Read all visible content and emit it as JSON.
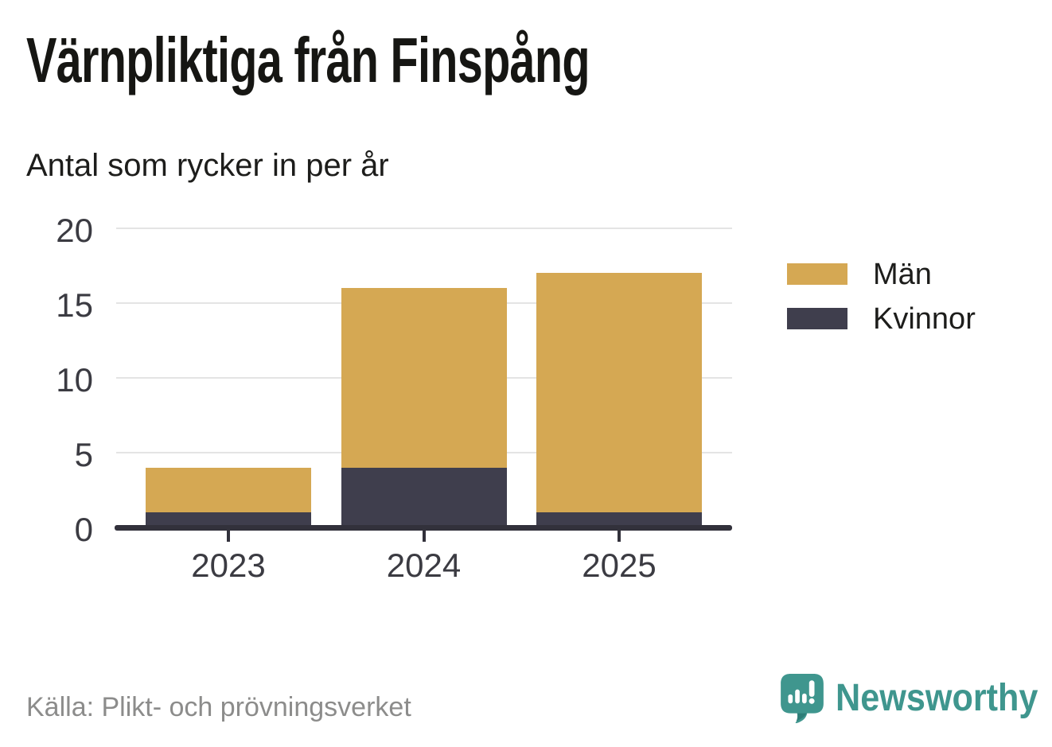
{
  "header": {
    "title": "Värnpliktiga från Finspång",
    "subtitle": "Antal som rycker in per år"
  },
  "chart_data": {
    "type": "bar",
    "stacked": true,
    "title": "Värnpliktiga från Finspång",
    "subtitle": "Antal som rycker in per år",
    "categories": [
      "2023",
      "2024",
      "2025"
    ],
    "series": [
      {
        "name": "Män",
        "color": "#d5a853",
        "values": [
          3,
          12,
          16
        ]
      },
      {
        "name": "Kvinnor",
        "color": "#3f3e4d",
        "values": [
          1,
          4,
          1
        ]
      }
    ],
    "totals": [
      4,
      16,
      17
    ],
    "y_ticks": [
      0,
      5,
      10,
      15,
      20
    ],
    "ylim": [
      0,
      20
    ],
    "xlabel": "",
    "ylabel": "",
    "grid": "horizontal",
    "legend_position": "right"
  },
  "legend": {
    "items": [
      {
        "label": "Män",
        "color": "#d5a853"
      },
      {
        "label": "Kvinnor",
        "color": "#3f3e4d"
      }
    ]
  },
  "footer": {
    "source": "Källa: Plikt- och prövningsverket",
    "brand": "Newsworthy",
    "brand_color": "#3f968e"
  }
}
